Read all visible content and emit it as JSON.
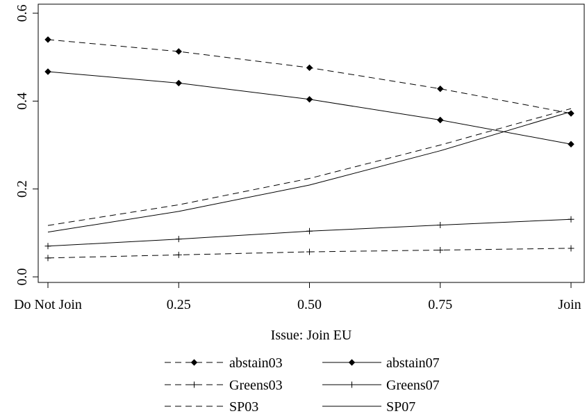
{
  "chart_data": {
    "type": "line",
    "categories": [
      "Do Not Join",
      "0.25",
      "0.50",
      "0.75",
      "Join"
    ],
    "x": [
      0,
      0.25,
      0.5,
      0.75,
      1
    ],
    "ylim": [
      0,
      0.6
    ],
    "yticks": [
      0.0,
      0.2,
      0.4,
      0.6
    ],
    "ytick_labels": [
      "0.0",
      "0.2",
      "0.4",
      "0.6"
    ],
    "xlabel": "Issue: Join EU",
    "ylabel": "",
    "title": "",
    "grid": false,
    "legend_position": "bottom",
    "series": [
      {
        "name": "abstain03",
        "line": "dashed",
        "marker": "diamond",
        "values": [
          0.54,
          0.513,
          0.476,
          0.428,
          0.372
        ]
      },
      {
        "name": "abstain07",
        "line": "solid",
        "marker": "diamond",
        "values": [
          0.467,
          0.441,
          0.404,
          0.357,
          0.302
        ]
      },
      {
        "name": "Greens03",
        "line": "dashed",
        "marker": "plus",
        "values": [
          0.043,
          0.05,
          0.057,
          0.061,
          0.065
        ]
      },
      {
        "name": "Greens07",
        "line": "solid",
        "marker": "plus",
        "values": [
          0.07,
          0.086,
          0.104,
          0.118,
          0.131
        ]
      },
      {
        "name": "SP03",
        "line": "dashed",
        "marker": "none",
        "values": [
          0.117,
          0.164,
          0.224,
          0.3,
          0.383
        ]
      },
      {
        "name": "SP07",
        "line": "solid",
        "marker": "none",
        "values": [
          0.102,
          0.149,
          0.209,
          0.287,
          0.376
        ]
      }
    ]
  }
}
